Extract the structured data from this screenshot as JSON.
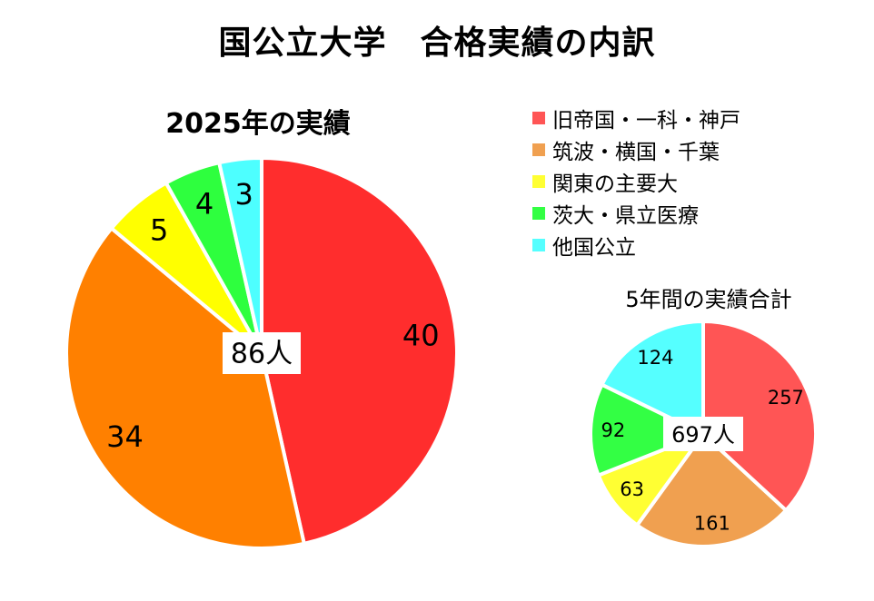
{
  "title": "国公立大学　合格実績の内訳",
  "chart_data": [
    {
      "type": "pie",
      "title": "2025年の実績",
      "center_label": "86人",
      "categories": [
        "旧帝国・一科・神戸",
        "筑波・横国・千葉",
        "関東の主要大",
        "茨大・県立医療",
        "他国公立"
      ],
      "values": [
        40,
        34,
        5,
        4,
        3
      ],
      "colors": [
        "#ff2d2d",
        "#ff8000",
        "#ffff00",
        "#2eff3e",
        "#4dffff"
      ]
    },
    {
      "type": "pie",
      "title": "5年間の実績合計",
      "center_label": "697人",
      "categories": [
        "旧帝国・一科・神戸",
        "筑波・横国・千葉",
        "関東の主要大",
        "茨大・県立医療",
        "他国公立"
      ],
      "values": [
        257,
        161,
        63,
        92,
        124
      ],
      "colors": [
        "#ff5555",
        "#f0a050",
        "#ffff33",
        "#33ff44",
        "#55ffff"
      ]
    }
  ],
  "legend": {
    "items": [
      {
        "label": "旧帝国・一科・神戸",
        "color": "#ff5555"
      },
      {
        "label": "筑波・横国・千葉",
        "color": "#f0a050"
      },
      {
        "label": "関東の主要大",
        "color": "#ffff33"
      },
      {
        "label": "茨大・県立医療",
        "color": "#33ff44"
      },
      {
        "label": "他国公立",
        "color": "#55ffff"
      }
    ]
  }
}
